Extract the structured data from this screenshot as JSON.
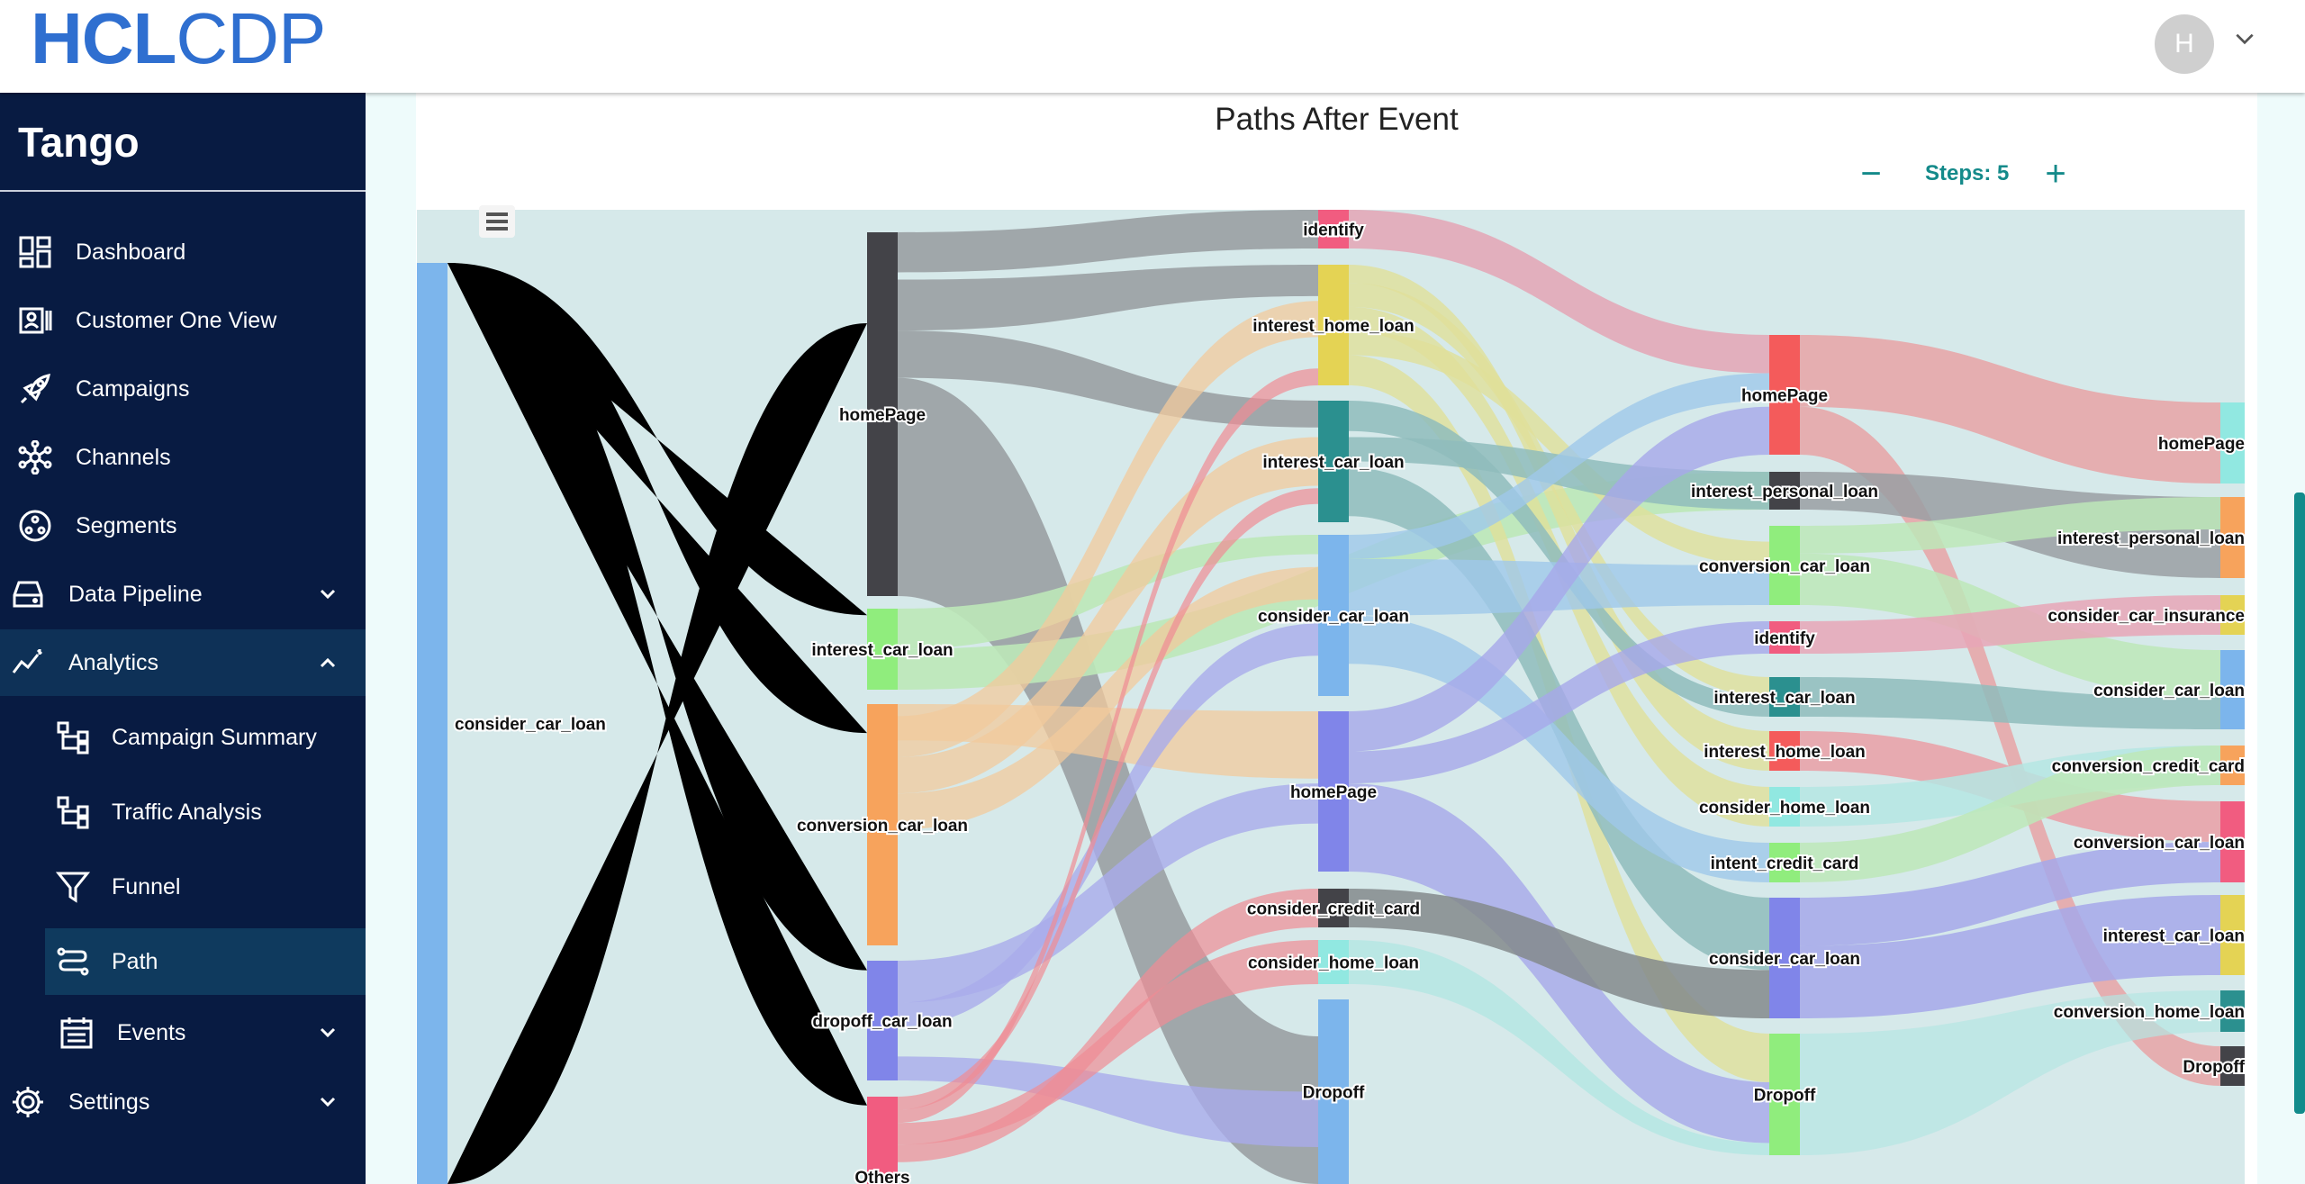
{
  "app": {
    "logo_bold": "HCL",
    "logo_light": "CDP",
    "brand": "Tango",
    "user_initial": "H"
  },
  "sidebar": {
    "items": [
      {
        "label": "Dashboard",
        "icon": "dashboard-icon"
      },
      {
        "label": "Customer One View",
        "icon": "id-card-icon"
      },
      {
        "label": "Campaigns",
        "icon": "rocket-icon"
      },
      {
        "label": "Channels",
        "icon": "network-icon"
      },
      {
        "label": "Segments",
        "icon": "segments-icon"
      },
      {
        "label": "Data Pipeline",
        "icon": "database-icon"
      },
      {
        "label": "Analytics",
        "icon": "analytics-icon"
      },
      {
        "label": "Campaign Summary",
        "icon": "hierarchy-icon"
      },
      {
        "label": "Traffic Analysis",
        "icon": "hierarchy-icon"
      },
      {
        "label": "Funnel",
        "icon": "funnel-icon"
      },
      {
        "label": "Path",
        "icon": "path-icon"
      },
      {
        "label": "Events",
        "icon": "calendar-icon"
      },
      {
        "label": "Settings",
        "icon": "gear-icon"
      }
    ]
  },
  "main": {
    "title": "Paths After Event",
    "steps_label": "Steps: 5",
    "minus": "−",
    "plus": "+"
  },
  "colors": {
    "brand_blue": "#2f6fd0",
    "sidebar_bg": "#081b42",
    "accent_teal": "#148a8a",
    "chart_bg": "#d6e9ea"
  },
  "chart_data": {
    "type": "sankey",
    "title": "Paths After Event",
    "steps": 5,
    "columns": [
      [
        {
          "id": "c0_consider_car_loan",
          "label": "consider_car_loan",
          "color": "#7cb5ec"
        }
      ],
      [
        {
          "id": "c1_homePage",
          "label": "homePage",
          "color": "#434348"
        },
        {
          "id": "c1_interest_car_loan",
          "label": "interest_car_loan",
          "color": "#90ed7d"
        },
        {
          "id": "c1_conversion_car_loan",
          "label": "conversion_car_loan",
          "color": "#f7a35c"
        },
        {
          "id": "c1_dropoff_car_loan",
          "label": "dropoff_car_loan",
          "color": "#8085e9"
        },
        {
          "id": "c1_Others",
          "label": "Others",
          "color": "#f15c80"
        }
      ],
      [
        {
          "id": "c2_identify",
          "label": "identify",
          "color": "#f15c80"
        },
        {
          "id": "c2_interest_home_loan",
          "label": "interest_home_loan",
          "color": "#e4d354"
        },
        {
          "id": "c2_interest_car_loan",
          "label": "interest_car_loan",
          "color": "#2b908f"
        },
        {
          "id": "c2_consider_car_loan",
          "label": "consider_car_loan",
          "color": "#7cb5ec"
        },
        {
          "id": "c2_homePage",
          "label": "homePage",
          "color": "#8085e9"
        },
        {
          "id": "c2_consider_credit_card",
          "label": "consider_credit_card",
          "color": "#434348"
        },
        {
          "id": "c2_consider_home_loan",
          "label": "consider_home_loan",
          "color": "#91e8e1"
        },
        {
          "id": "c2_Dropoff",
          "label": "Dropoff",
          "color": "#7cb5ec"
        }
      ],
      [
        {
          "id": "c3_homePage",
          "label": "homePage",
          "color": "#f45b5b"
        },
        {
          "id": "c3_interest_personal_loan",
          "label": "interest_personal_loan",
          "color": "#434348"
        },
        {
          "id": "c3_conversion_car_loan",
          "label": "conversion_car_loan",
          "color": "#90ed7d"
        },
        {
          "id": "c3_identify",
          "label": "identify",
          "color": "#f15c80"
        },
        {
          "id": "c3_interest_car_loan",
          "label": "interest_car_loan",
          "color": "#2b908f"
        },
        {
          "id": "c3_interest_home_loan",
          "label": "interest_home_loan",
          "color": "#f45b5b"
        },
        {
          "id": "c3_consider_home_loan",
          "label": "consider_home_loan",
          "color": "#91e8e1"
        },
        {
          "id": "c3_intent_credit_card",
          "label": "intent_credit_card",
          "color": "#90ed7d"
        },
        {
          "id": "c3_consider_car_loan",
          "label": "consider_car_loan",
          "color": "#8085e9"
        },
        {
          "id": "c3_Dropoff",
          "label": "Dropoff",
          "color": "#90ed7d"
        }
      ],
      [
        {
          "id": "c4_homePage",
          "label": "homePage",
          "color": "#91e8e1"
        },
        {
          "id": "c4_interest_personal_loan",
          "label": "interest_personal_loan",
          "color": "#f7a35c"
        },
        {
          "id": "c4_consider_car_insurance",
          "label": "consider_car_insurance",
          "color": "#e4d354"
        },
        {
          "id": "c4_consider_car_loan",
          "label": "consider_car_loan",
          "color": "#7cb5ec"
        },
        {
          "id": "c4_conversion_credit_card",
          "label": "conversion_credit_card",
          "color": "#f7a35c"
        },
        {
          "id": "c4_conversion_car_loan",
          "label": "conversion_car_loan",
          "color": "#f15c80"
        },
        {
          "id": "c4_interest_car_loan",
          "label": "interest_car_loan",
          "color": "#e4d354"
        },
        {
          "id": "c4_conversion_home_loan",
          "label": "conversion_home_loan",
          "color": "#2b908f"
        },
        {
          "id": "c4_Dropoff",
          "label": "Dropoff",
          "color": "#434348"
        }
      ]
    ]
  }
}
